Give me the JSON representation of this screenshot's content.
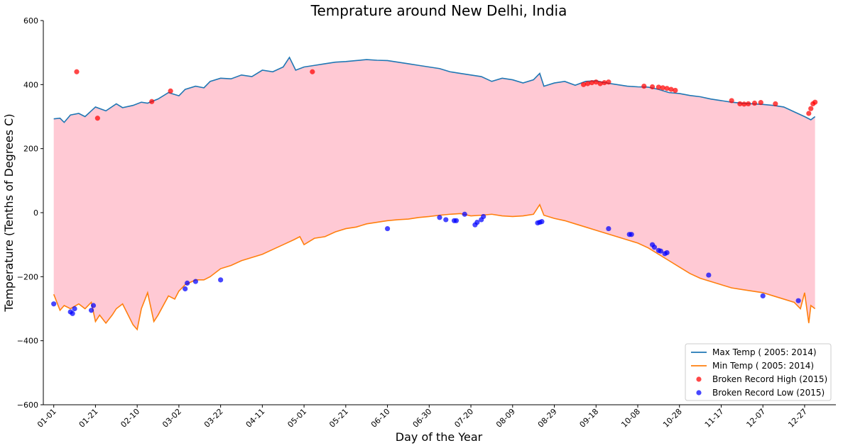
{
  "chart_data": {
    "type": "line",
    "title": "Temprature around New Delhi, India",
    "xlabel": "Day of the Year",
    "ylabel": "Temperature (Tenths of Degrees C)",
    "ylim": [
      -600,
      600
    ],
    "yticks": [
      -600,
      -400,
      -200,
      0,
      200,
      400,
      600
    ],
    "ytick_labels": [
      "−600",
      "−400",
      "−200",
      "0",
      "200",
      "400",
      "600"
    ],
    "xlim": [
      -5,
      375
    ],
    "xticks": [
      0,
      20,
      40,
      60,
      80,
      100,
      120,
      140,
      160,
      180,
      200,
      220,
      240,
      260,
      280,
      300,
      320,
      340,
      360
    ],
    "xtick_labels": [
      "01-01",
      "01-21",
      "02-10",
      "03-02",
      "03-22",
      "04-11",
      "05-01",
      "05-21",
      "06-10",
      "06-30",
      "07-20",
      "08-09",
      "08-29",
      "09-18",
      "10-08",
      "10-28",
      "11-17",
      "12-07",
      "12-27"
    ],
    "legend_position": "lower-right",
    "fill_between": {
      "color": "#ffc9d4"
    },
    "series": [
      {
        "name": "Max Temp ( 2005: 2014)",
        "kind": "line",
        "color": "#1f77b4",
        "x": [
          0,
          3,
          5,
          8,
          12,
          15,
          20,
          25,
          30,
          33,
          38,
          42,
          45,
          50,
          55,
          60,
          63,
          68,
          72,
          75,
          80,
          85,
          90,
          95,
          100,
          105,
          110,
          113,
          116,
          120,
          125,
          130,
          135,
          140,
          145,
          150,
          155,
          160,
          165,
          170,
          175,
          180,
          185,
          190,
          195,
          200,
          205,
          210,
          215,
          220,
          225,
          230,
          233,
          235,
          240,
          245,
          250,
          255,
          260,
          265,
          270,
          275,
          280,
          285,
          290,
          295,
          300,
          305,
          310,
          315,
          320,
          325,
          330,
          335,
          340,
          345,
          350,
          355,
          360,
          363,
          365
        ],
        "y": [
          293,
          295,
          282,
          305,
          310,
          300,
          330,
          318,
          340,
          328,
          335,
          345,
          342,
          355,
          375,
          365,
          385,
          395,
          390,
          410,
          420,
          418,
          430,
          425,
          445,
          440,
          455,
          485,
          445,
          455,
          460,
          465,
          470,
          472,
          475,
          478,
          476,
          475,
          470,
          465,
          460,
          455,
          450,
          440,
          435,
          430,
          425,
          410,
          420,
          415,
          405,
          415,
          435,
          395,
          405,
          410,
          398,
          410,
          412,
          405,
          400,
          395,
          393,
          392,
          385,
          375,
          372,
          366,
          362,
          355,
          350,
          345,
          342,
          340,
          338,
          335,
          330,
          315,
          300,
          290,
          300
        ]
      },
      {
        "name": "Min Temp ( 2005: 2014)",
        "kind": "line",
        "color": "#ff7f0e",
        "x": [
          0,
          3,
          5,
          8,
          12,
          15,
          18,
          20,
          22,
          25,
          28,
          30,
          33,
          38,
          40,
          42,
          45,
          48,
          50,
          55,
          58,
          60,
          63,
          68,
          72,
          75,
          80,
          85,
          90,
          95,
          100,
          105,
          110,
          115,
          118,
          120,
          125,
          130,
          135,
          140,
          145,
          150,
          155,
          160,
          165,
          170,
          175,
          180,
          185,
          190,
          195,
          200,
          205,
          210,
          215,
          220,
          225,
          230,
          233,
          235,
          240,
          245,
          250,
          255,
          260,
          265,
          270,
          275,
          280,
          285,
          290,
          295,
          300,
          305,
          310,
          315,
          320,
          325,
          330,
          335,
          340,
          345,
          350,
          355,
          358,
          360,
          362,
          363,
          365
        ],
        "y": [
          -255,
          -305,
          -290,
          -300,
          -285,
          -300,
          -280,
          -340,
          -320,
          -345,
          -320,
          -300,
          -285,
          -350,
          -365,
          -300,
          -250,
          -340,
          -320,
          -260,
          -270,
          -245,
          -225,
          -210,
          -210,
          -200,
          -175,
          -165,
          -150,
          -140,
          -130,
          -115,
          -100,
          -85,
          -75,
          -100,
          -80,
          -75,
          -60,
          -50,
          -45,
          -35,
          -30,
          -25,
          -22,
          -20,
          -15,
          -12,
          -8,
          -5,
          -3,
          -10,
          -8,
          -5,
          -10,
          -12,
          -10,
          -5,
          25,
          -8,
          -18,
          -25,
          -35,
          -45,
          -55,
          -65,
          -75,
          -85,
          -95,
          -110,
          -130,
          -150,
          -170,
          -190,
          -205,
          -215,
          -225,
          -235,
          -240,
          -245,
          -250,
          -260,
          -270,
          -280,
          -300,
          -250,
          -345,
          -290,
          -300
        ]
      },
      {
        "name": "Broken Record High (2015)",
        "kind": "scatter",
        "color": "#ff0000",
        "x": [
          11,
          21,
          47,
          56,
          124,
          254,
          256,
          258,
          260,
          262,
          264,
          266,
          283,
          287,
          290,
          292,
          294,
          296,
          298,
          325,
          329,
          331,
          333,
          336,
          339,
          346,
          362,
          363,
          364,
          365
        ],
        "y": [
          440,
          295,
          347,
          380,
          440,
          400,
          403,
          406,
          408,
          403,
          406,
          408,
          395,
          393,
          392,
          390,
          388,
          385,
          382,
          350,
          340,
          339,
          340,
          342,
          344,
          340,
          310,
          325,
          340,
          345
        ]
      },
      {
        "name": "Broken Record Low (2015)",
        "kind": "scatter",
        "color": "#0000ff",
        "x": [
          0,
          8,
          9,
          10,
          18,
          19,
          63,
          64,
          68,
          80,
          160,
          185,
          188,
          192,
          193,
          197,
          202,
          203,
          205,
          206,
          232,
          233,
          234,
          266,
          276,
          277,
          287,
          288,
          290,
          291,
          293,
          294,
          314,
          340,
          357
        ],
        "y": [
          -285,
          -310,
          -315,
          -300,
          -305,
          -290,
          -238,
          -220,
          -215,
          -210,
          -50,
          -15,
          -22,
          -25,
          -25,
          -5,
          -38,
          -30,
          -22,
          -12,
          -32,
          -30,
          -28,
          -50,
          -68,
          -68,
          -100,
          -108,
          -118,
          -120,
          -128,
          -125,
          -195,
          -260,
          -275
        ]
      }
    ]
  }
}
